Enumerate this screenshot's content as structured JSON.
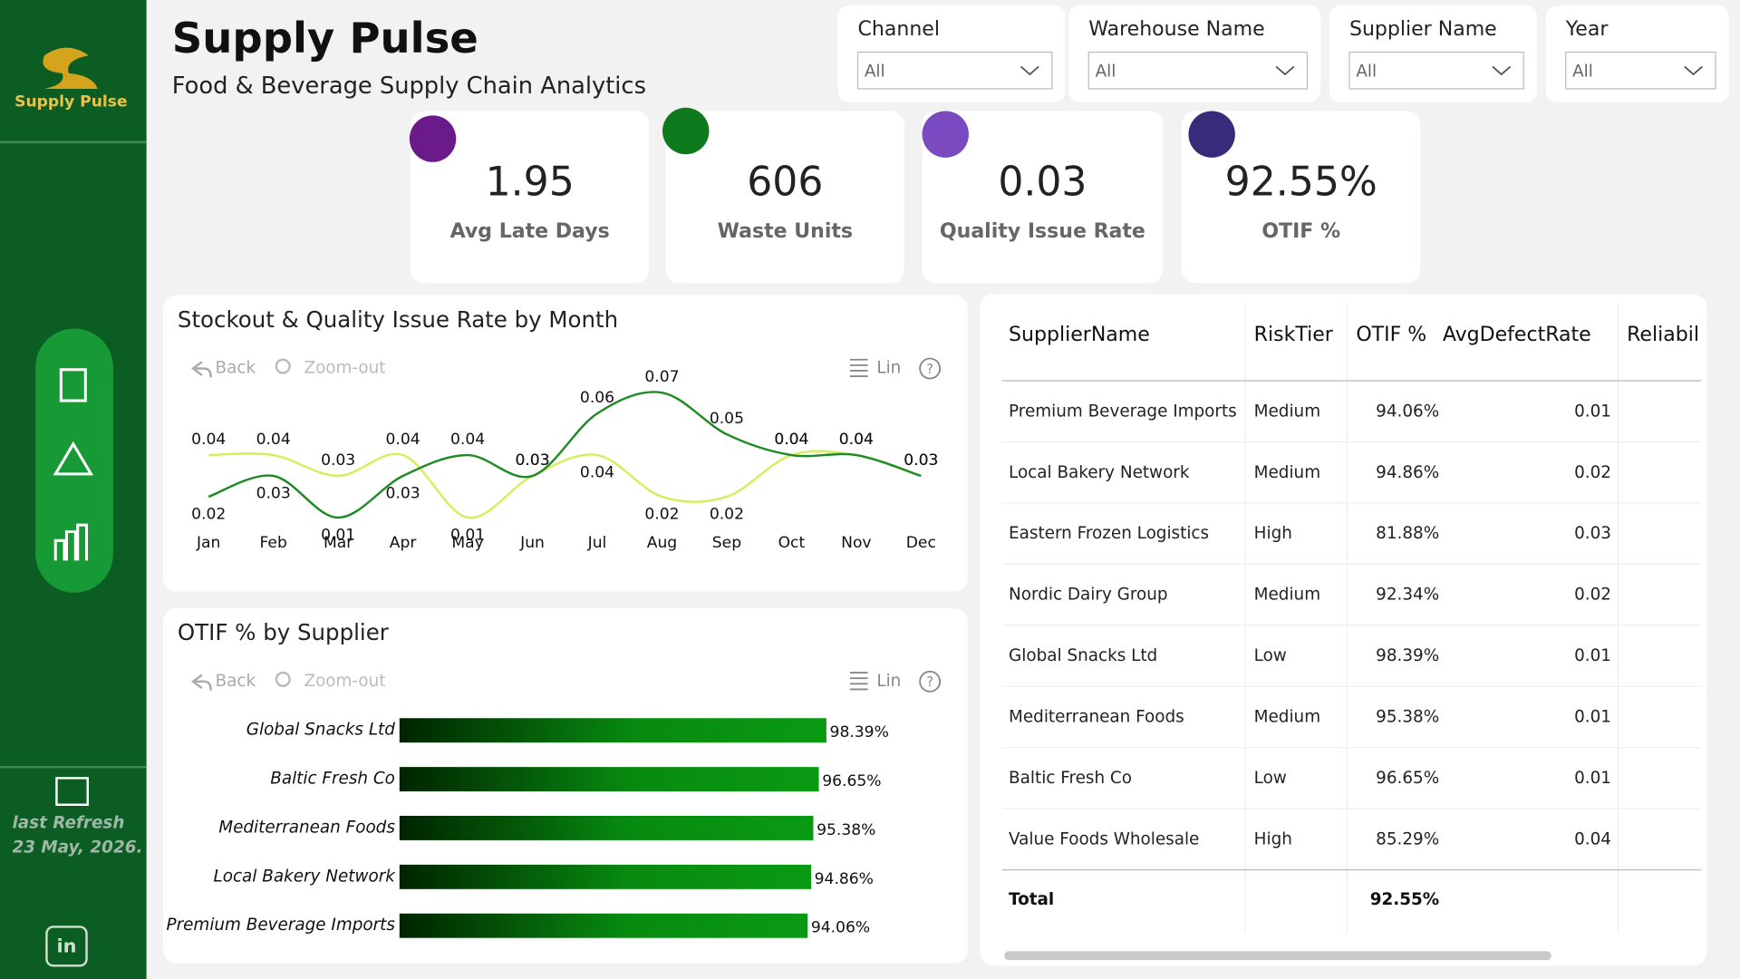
{
  "header": {
    "logo": "Supply Pulse",
    "title": "Supply Pulse",
    "subtitle": "Food & Beverage Supply Chain Analytics"
  },
  "filters": [
    {
      "label": "Channel",
      "value": "All"
    },
    {
      "label": "Warehouse Name",
      "value": "All"
    },
    {
      "label": "Supplier Name",
      "value": "All"
    },
    {
      "label": "Year",
      "value": "All"
    }
  ],
  "kpis": [
    {
      "value": "1.95",
      "label": "Avg Late Days"
    },
    {
      "value": "606",
      "label": "Waste Units"
    },
    {
      "value": "0.03",
      "label": "Quality Issue Rate"
    },
    {
      "value": "92.55%",
      "label": "OTIF %"
    }
  ],
  "sidebar": {
    "refresh_label": "last Refresh",
    "refresh_date": "23 May, 2026."
  },
  "toolbar": {
    "back": "Back",
    "zoom": "Zoom-out",
    "lin": "Lin",
    "help": "?"
  },
  "chart_data": [
    {
      "type": "line",
      "title": "Stockout & Quality Issue Rate by Month",
      "categories": [
        "Jan",
        "Feb",
        "Mar",
        "Apr",
        "May",
        "Jun",
        "Jul",
        "Aug",
        "Sep",
        "Oct",
        "Nov",
        "Dec"
      ],
      "series": [
        {
          "color": "#1e8a24",
          "values": [
            0.02,
            0.03,
            0.01,
            0.03,
            0.04,
            0.03,
            0.06,
            0.07,
            0.05,
            0.04,
            0.04,
            0.03
          ]
        },
        {
          "color": "#d6ee5c",
          "values": [
            0.04,
            0.04,
            0.03,
            0.04,
            0.01,
            0.03,
            0.04,
            0.02,
            0.02,
            0.04,
            0.04,
            0.03
          ]
        }
      ],
      "ylim": [
        0,
        0.08
      ]
    },
    {
      "type": "bar",
      "title": "OTIF % by Supplier",
      "categories": [
        "Global Snacks Ltd",
        "Baltic Fresh Co",
        "Mediterranean Foods",
        "Local Bakery Network",
        "Premium Beverage Imports"
      ],
      "values": [
        98.39,
        96.65,
        95.38,
        94.86,
        94.06
      ],
      "value_labels": [
        "98.39%",
        "96.65%",
        "95.38%",
        "94.86%",
        "94.06%"
      ],
      "xlim": [
        0,
        100
      ],
      "color": "#0a9a12"
    }
  ],
  "table": {
    "columns": [
      "SupplierName",
      "RiskTier",
      "OTIF %",
      "AvgDefectRate",
      "Reliabil"
    ],
    "rows": [
      [
        "Premium Beverage Imports",
        "Medium",
        "94.06%",
        "0.01"
      ],
      [
        "Local Bakery Network",
        "Medium",
        "94.86%",
        "0.02"
      ],
      [
        "Eastern Frozen Logistics",
        "High",
        "81.88%",
        "0.03"
      ],
      [
        "Nordic Dairy Group",
        "Medium",
        "92.34%",
        "0.02"
      ],
      [
        "Global Snacks Ltd",
        "Low",
        "98.39%",
        "0.01"
      ],
      [
        "Mediterranean Foods",
        "Medium",
        "95.38%",
        "0.01"
      ],
      [
        "Baltic Fresh Co",
        "Low",
        "96.65%",
        "0.01"
      ],
      [
        "Value Foods Wholesale",
        "High",
        "85.29%",
        "0.04"
      ]
    ],
    "total": {
      "label": "Total",
      "otif": "92.55%"
    }
  }
}
